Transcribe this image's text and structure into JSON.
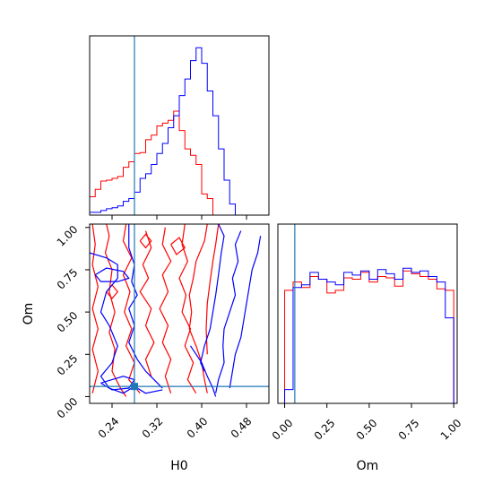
{
  "chart_data": [
    {
      "type": "histogram",
      "panel": "H0-marginal",
      "xlim": [
        0.2,
        0.52
      ],
      "truth": 0.28,
      "series": [
        {
          "color": "#ff0000",
          "bins": [
            0.2,
            0.21,
            0.22,
            0.23,
            0.24,
            0.25,
            0.26,
            0.27,
            0.28,
            0.29,
            0.3,
            0.31,
            0.32,
            0.33,
            0.34,
            0.35,
            0.36,
            0.37,
            0.38,
            0.39,
            0.4,
            0.41,
            0.42,
            0.43,
            0.44,
            0.45
          ],
          "counts": [
            20,
            28,
            37,
            38,
            40,
            42,
            52,
            58,
            67,
            68,
            82,
            87,
            97,
            100,
            103,
            113,
            92,
            72,
            65,
            55,
            23,
            18,
            0,
            0,
            0
          ]
        },
        {
          "color": "#0000ff",
          "bins": [
            0.2,
            0.21,
            0.22,
            0.23,
            0.24,
            0.25,
            0.26,
            0.27,
            0.28,
            0.29,
            0.3,
            0.31,
            0.32,
            0.33,
            0.34,
            0.35,
            0.36,
            0.37,
            0.38,
            0.39,
            0.4,
            0.41,
            0.42,
            0.43,
            0.44,
            0.45,
            0.46,
            0.47,
            0.48,
            0.49,
            0.5,
            0.51,
            0.52
          ],
          "counts": [
            3,
            3,
            5,
            7,
            8,
            10,
            15,
            18,
            25,
            40,
            45,
            55,
            67,
            78,
            95,
            108,
            130,
            148,
            168,
            182,
            165,
            135,
            108,
            72,
            38,
            12,
            0,
            0,
            0,
            0,
            0,
            0
          ]
        }
      ]
    },
    {
      "type": "contour",
      "panel": "H0-vs-Om",
      "xlim": [
        0.2,
        0.52
      ],
      "ylim": [
        -0.04,
        1.02
      ],
      "truth_point": [
        0.28,
        0.06
      ]
    },
    {
      "type": "histogram",
      "panel": "Om-marginal",
      "xlim": [
        -0.04,
        1.02
      ],
      "truth": 0.06,
      "series": [
        {
          "color": "#ff0000",
          "bins": [
            0.0,
            0.05,
            0.1,
            0.15,
            0.2,
            0.25,
            0.3,
            0.35,
            0.4,
            0.45,
            0.5,
            0.55,
            0.6,
            0.65,
            0.7,
            0.75,
            0.8,
            0.85,
            0.9,
            0.95,
            1.0
          ],
          "counts": [
            82,
            88,
            84,
            92,
            90,
            80,
            82,
            91,
            90,
            95,
            88,
            92,
            91,
            85,
            96,
            94,
            92,
            90,
            83,
            82
          ]
        },
        {
          "color": "#0000ff",
          "bins": [
            0.0,
            0.05,
            0.1,
            0.15,
            0.2,
            0.25,
            0.3,
            0.35,
            0.4,
            0.45,
            0.5,
            0.55,
            0.6,
            0.65,
            0.7,
            0.75,
            0.8,
            0.85,
            0.9,
            0.95,
            1.0
          ],
          "counts": [
            10,
            84,
            86,
            95,
            90,
            88,
            86,
            95,
            93,
            96,
            90,
            97,
            94,
            90,
            98,
            95,
            96,
            92,
            88,
            62
          ]
        }
      ]
    }
  ],
  "axes": {
    "x_label_h0": "H0",
    "x_label_om": "Om",
    "y_label_om": "Om",
    "h0_ticks": [
      "0.24",
      "0.32",
      "0.40",
      "0.48"
    ],
    "om_ticks": [
      "0.00",
      "0.25",
      "0.50",
      "0.75",
      "1.00"
    ]
  },
  "colors": {
    "series_a": "#ff0000",
    "series_b": "#0000ff",
    "truth": "#1f77b4"
  }
}
